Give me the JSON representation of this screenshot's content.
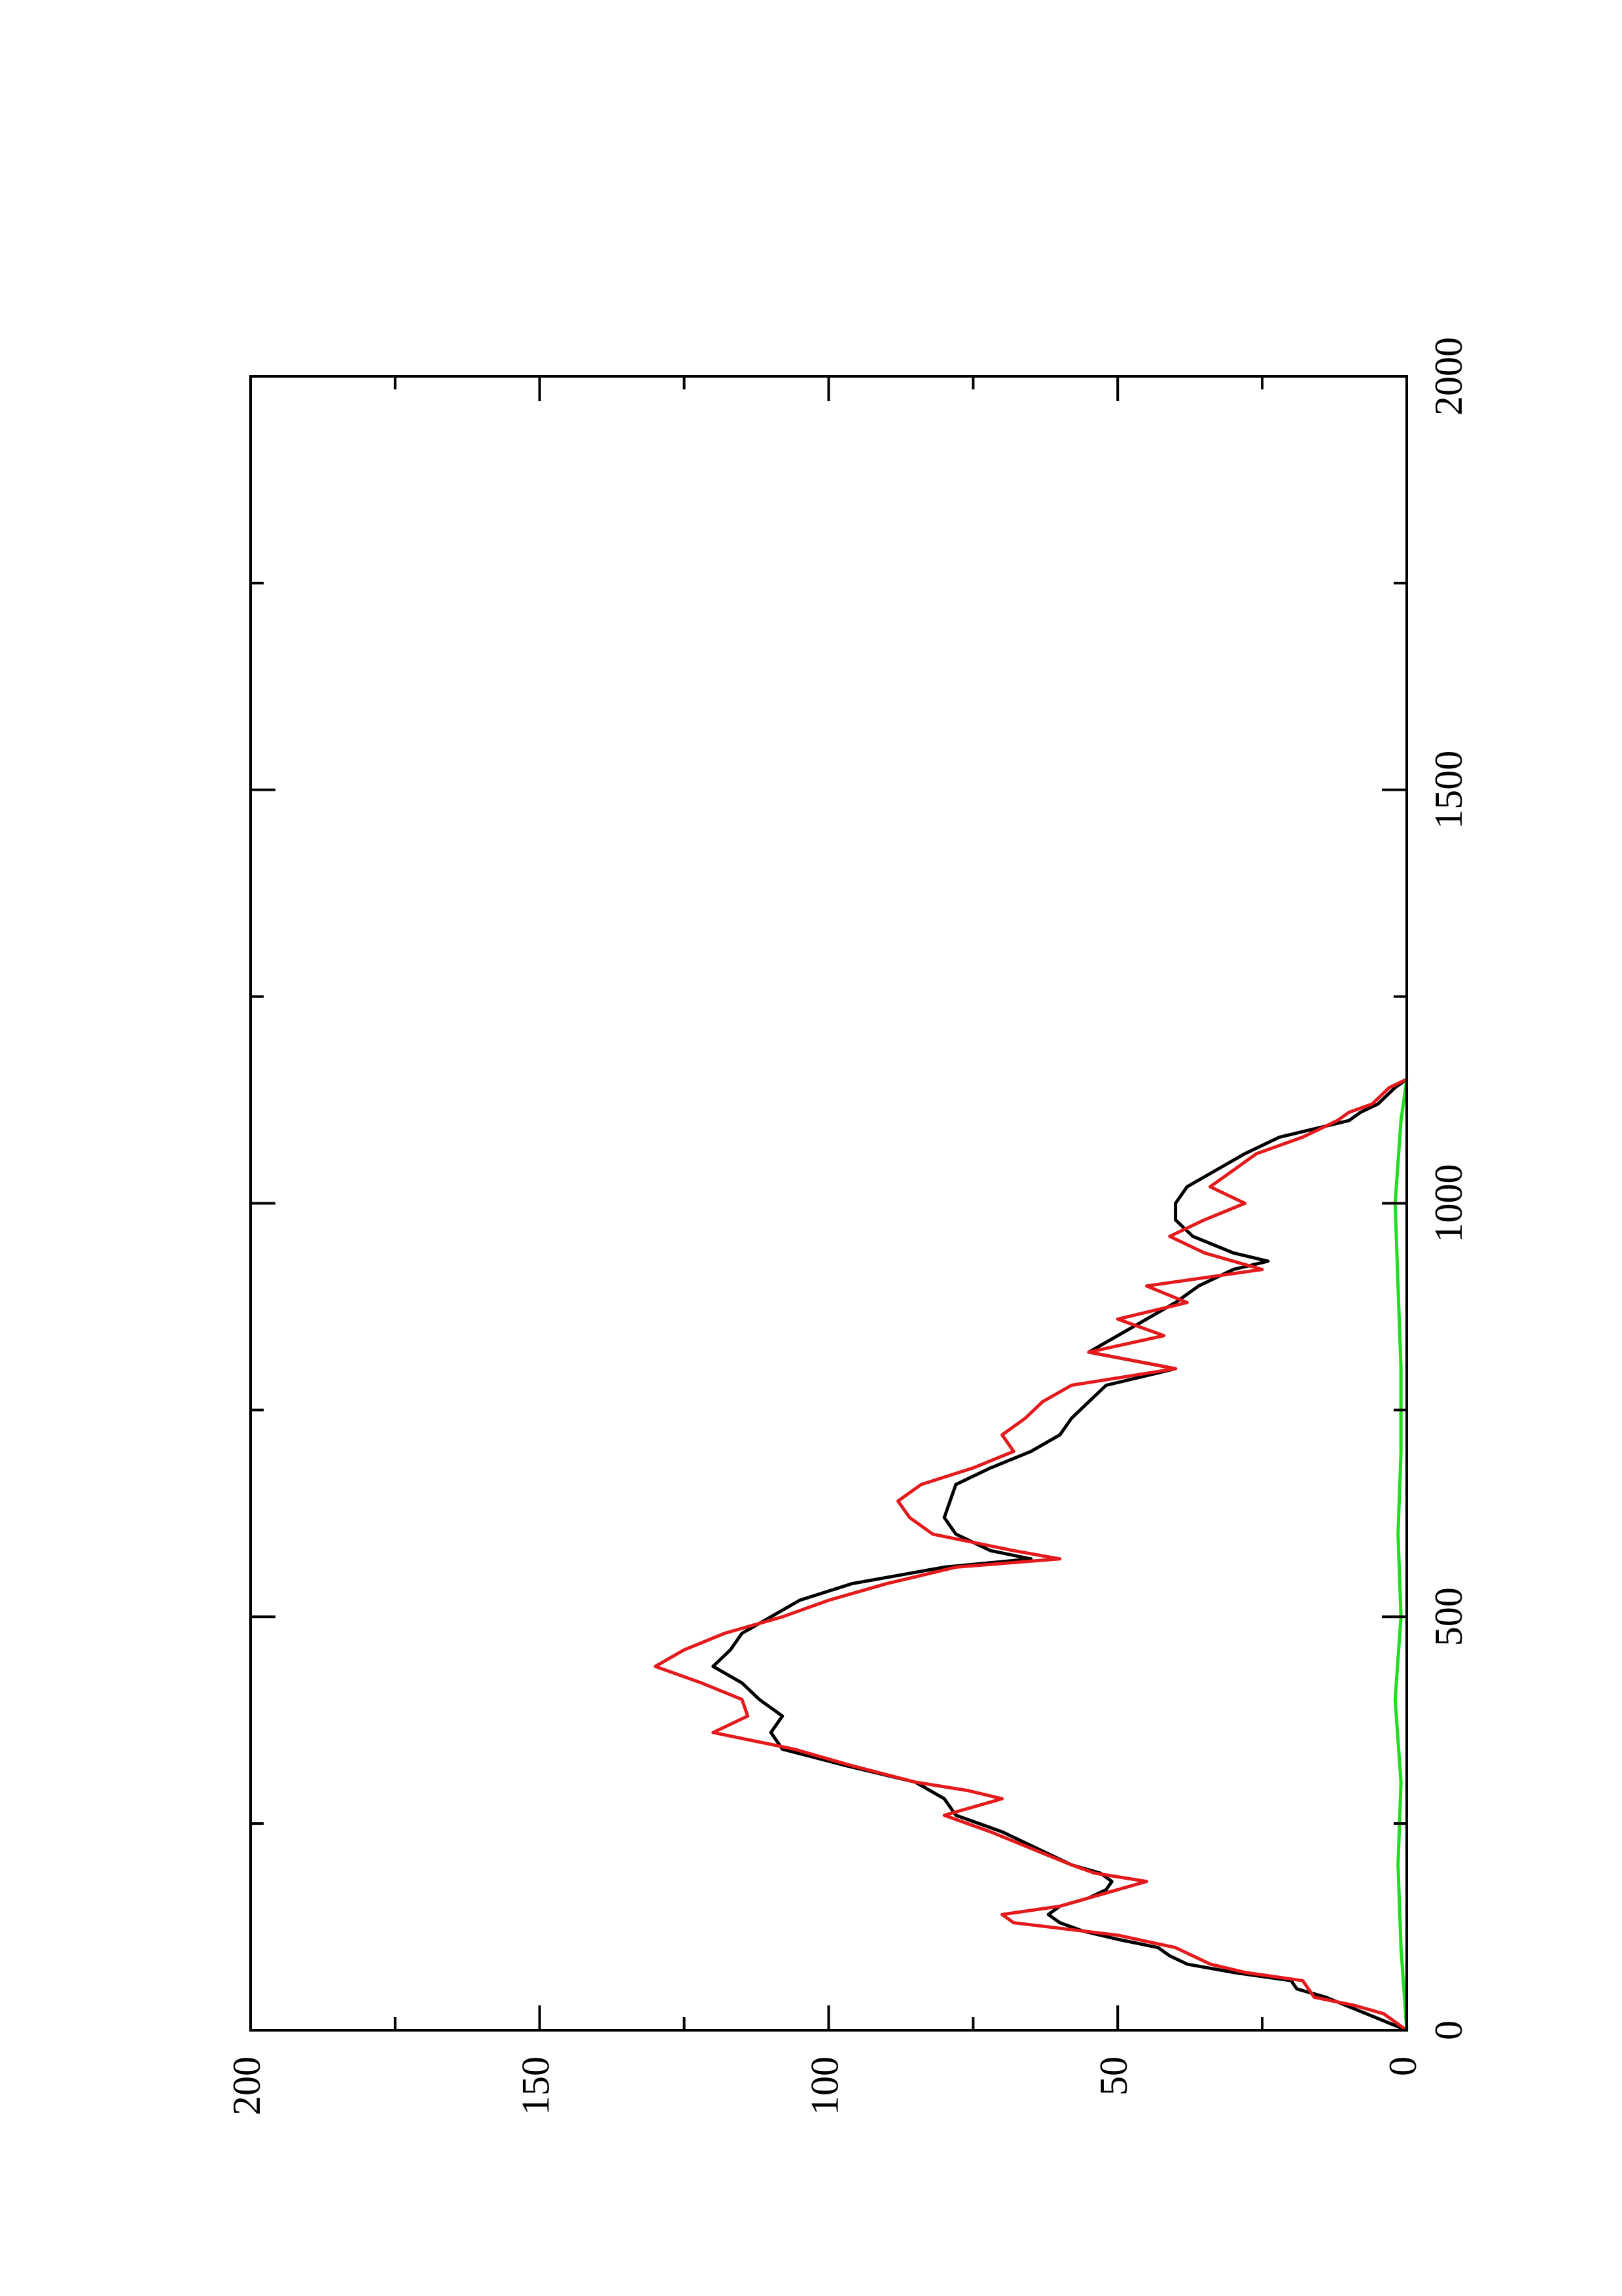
{
  "chart_data": {
    "type": "line",
    "orientation": "rotated-90-ccw",
    "xlim": [
      0,
      2000
    ],
    "ylim": [
      0,
      200
    ],
    "x_ticks": [
      "0",
      "500",
      "1000",
      "1500",
      "2000"
    ],
    "y_ticks": [
      "0",
      "50",
      "100",
      "150",
      "200"
    ],
    "x_minor_step": 250,
    "y_minor_step": 25,
    "grid": false,
    "title": "",
    "xlabel": "",
    "ylabel": "",
    "series": [
      {
        "color": "#000000",
        "points": [
          [
            0,
            0
          ],
          [
            20,
            7
          ],
          [
            40,
            14
          ],
          [
            50,
            19
          ],
          [
            60,
            20
          ],
          [
            70,
            30
          ],
          [
            80,
            38
          ],
          [
            90,
            41
          ],
          [
            100,
            43
          ],
          [
            110,
            50
          ],
          [
            120,
            56
          ],
          [
            130,
            60
          ],
          [
            140,
            62
          ],
          [
            150,
            60
          ],
          [
            160,
            55
          ],
          [
            170,
            52
          ],
          [
            180,
            51
          ],
          [
            190,
            53
          ],
          [
            200,
            58
          ],
          [
            220,
            64
          ],
          [
            240,
            70
          ],
          [
            260,
            78
          ],
          [
            280,
            80
          ],
          [
            300,
            85
          ],
          [
            320,
            97
          ],
          [
            340,
            108
          ],
          [
            360,
            110
          ],
          [
            380,
            108
          ],
          [
            400,
            112
          ],
          [
            420,
            115
          ],
          [
            440,
            120
          ],
          [
            460,
            117
          ],
          [
            480,
            115
          ],
          [
            500,
            110
          ],
          [
            520,
            105
          ],
          [
            540,
            96
          ],
          [
            560,
            80
          ],
          [
            570,
            65
          ],
          [
            580,
            72
          ],
          [
            600,
            78
          ],
          [
            620,
            80
          ],
          [
            640,
            79
          ],
          [
            660,
            78
          ],
          [
            680,
            72
          ],
          [
            700,
            65
          ],
          [
            720,
            60
          ],
          [
            740,
            58
          ],
          [
            760,
            55
          ],
          [
            780,
            52
          ],
          [
            800,
            40
          ],
          [
            820,
            55
          ],
          [
            840,
            50
          ],
          [
            860,
            45
          ],
          [
            880,
            40
          ],
          [
            900,
            36
          ],
          [
            920,
            30
          ],
          [
            930,
            24
          ],
          [
            940,
            30
          ],
          [
            960,
            37
          ],
          [
            980,
            40
          ],
          [
            1000,
            40
          ],
          [
            1020,
            38
          ],
          [
            1040,
            33
          ],
          [
            1060,
            28
          ],
          [
            1080,
            22
          ],
          [
            1100,
            10
          ],
          [
            1110,
            8
          ],
          [
            1120,
            5
          ],
          [
            1140,
            2
          ],
          [
            1150,
            0
          ]
        ]
      },
      {
        "color": "#e41a1c",
        "points": [
          [
            0,
            0
          ],
          [
            20,
            4
          ],
          [
            30,
            9
          ],
          [
            40,
            16
          ],
          [
            60,
            18
          ],
          [
            70,
            28
          ],
          [
            80,
            34
          ],
          [
            100,
            40
          ],
          [
            115,
            50
          ],
          [
            130,
            68
          ],
          [
            140,
            70
          ],
          [
            150,
            60
          ],
          [
            160,
            55
          ],
          [
            170,
            50
          ],
          [
            180,
            45
          ],
          [
            190,
            54
          ],
          [
            200,
            58
          ],
          [
            220,
            65
          ],
          [
            240,
            72
          ],
          [
            260,
            80
          ],
          [
            270,
            75
          ],
          [
            280,
            70
          ],
          [
            290,
            76
          ],
          [
            300,
            85
          ],
          [
            320,
            96
          ],
          [
            340,
            106
          ],
          [
            360,
            120
          ],
          [
            380,
            114
          ],
          [
            400,
            115
          ],
          [
            420,
            122
          ],
          [
            440,
            130
          ],
          [
            460,
            125
          ],
          [
            480,
            118
          ],
          [
            500,
            108
          ],
          [
            520,
            100
          ],
          [
            540,
            90
          ],
          [
            560,
            78
          ],
          [
            570,
            60
          ],
          [
            580,
            68
          ],
          [
            600,
            82
          ],
          [
            620,
            86
          ],
          [
            640,
            88
          ],
          [
            660,
            84
          ],
          [
            680,
            75
          ],
          [
            700,
            68
          ],
          [
            720,
            70
          ],
          [
            740,
            66
          ],
          [
            760,
            63
          ],
          [
            780,
            58
          ],
          [
            800,
            40
          ],
          [
            820,
            55
          ],
          [
            840,
            42
          ],
          [
            860,
            50
          ],
          [
            880,
            38
          ],
          [
            900,
            45
          ],
          [
            920,
            25
          ],
          [
            940,
            35
          ],
          [
            960,
            41
          ],
          [
            980,
            35
          ],
          [
            1000,
            28
          ],
          [
            1020,
            34
          ],
          [
            1040,
            30
          ],
          [
            1060,
            26
          ],
          [
            1080,
            18
          ],
          [
            1100,
            12
          ],
          [
            1110,
            10
          ],
          [
            1120,
            6
          ],
          [
            1140,
            3
          ],
          [
            1150,
            0
          ]
        ]
      },
      {
        "color": "#22dd22",
        "points": [
          [
            0,
            0
          ],
          [
            100,
            1
          ],
          [
            200,
            1.5
          ],
          [
            300,
            1
          ],
          [
            400,
            2
          ],
          [
            500,
            1
          ],
          [
            600,
            1.5
          ],
          [
            700,
            1
          ],
          [
            800,
            1
          ],
          [
            900,
            1.5
          ],
          [
            1000,
            2
          ],
          [
            1100,
            1
          ],
          [
            1150,
            0
          ]
        ]
      }
    ]
  }
}
